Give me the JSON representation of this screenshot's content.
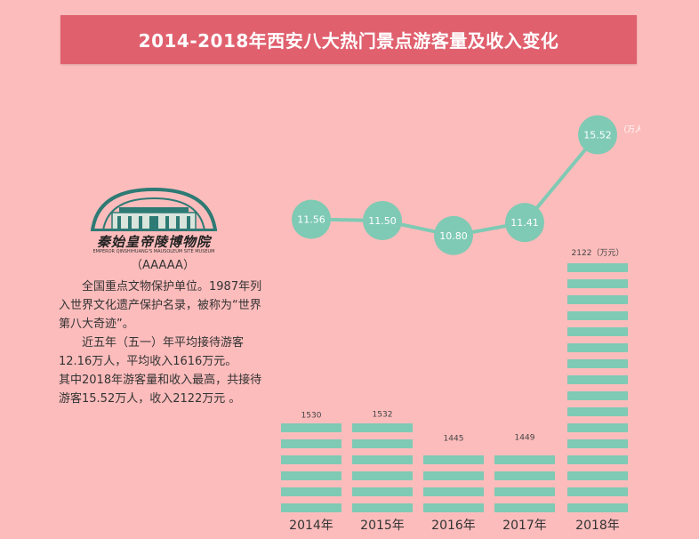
{
  "title": "2014-2018年西安八大热门景点游客量及收入变化",
  "logo": {
    "name": "秦始皇帝陵博物院",
    "subtitle": "EMPEROR QINSHIHUANG'S MAUSOLEUM SITE MUSEUM"
  },
  "description": {
    "grade": "（AAAAA）",
    "para1": "全国重点文物保护单位。1987年列入世界文化遗产保护名录，被称为“世界第八大奇迹”。",
    "para2": "近五年（五一）年平均接待游客12.16万人，平均收入1616万元。",
    "para3": "其中2018年游客量和收入最高，共接待游客15.52万人，收入2122万元 。"
  },
  "chart_data": {
    "type": "bar",
    "categories": [
      "2014年",
      "2015年",
      "2016年",
      "2017年",
      "2018年"
    ],
    "series": [
      {
        "values": [
          1530,
          1532,
          1445,
          1449,
          2122
        ],
        "color": "#7fcab4"
      },
      {
        "type": "line",
        "values": [
          11.56,
          11.5,
          10.8,
          11.41,
          15.52
        ],
        "color": "#7fcab4"
      }
    ],
    "bar_value_labels": [
      "1530",
      "1532",
      "1445",
      "1449",
      "2122（万元）"
    ],
    "line_value_labels": [
      "11.56",
      "11.50",
      "10.80",
      "11.41",
      "15.52"
    ],
    "line_unit_label": "（万人）",
    "colors": {
      "background": "#fdbcbc",
      "banner": "#e0606e",
      "accent": "#7fcab4"
    }
  }
}
